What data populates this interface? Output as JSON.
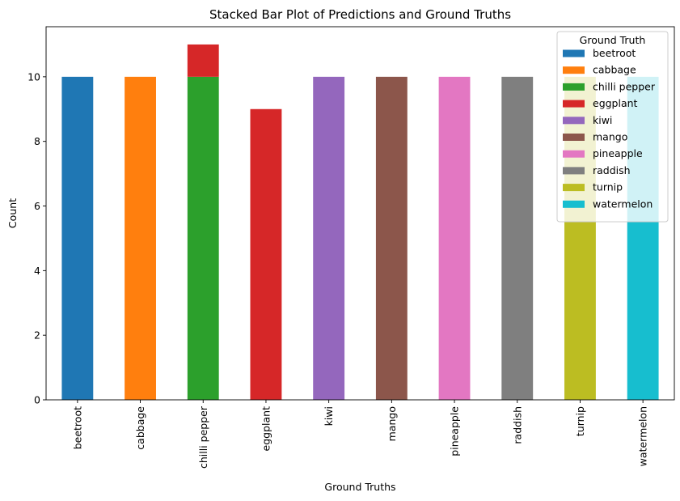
{
  "chart_data": {
    "type": "bar",
    "stacked": true,
    "title": "Stacked Bar Plot of Predictions and Ground Truths",
    "xlabel": "Ground Truths",
    "ylabel": "Count",
    "ylim": [
      0,
      11.55
    ],
    "yticks": [
      0,
      2,
      4,
      6,
      8,
      10
    ],
    "grid": false,
    "categories": [
      "beetroot",
      "cabbage",
      "chilli pepper",
      "eggplant",
      "kiwi",
      "mango",
      "pineapple",
      "raddish",
      "turnip",
      "watermelon"
    ],
    "legend": {
      "title": "Ground Truth",
      "placement": "top-right"
    },
    "series": [
      {
        "name": "beetroot",
        "color": "#1f77b4",
        "values": [
          10,
          0,
          0,
          0,
          0,
          0,
          0,
          0,
          0,
          0
        ]
      },
      {
        "name": "cabbage",
        "color": "#ff7f0e",
        "values": [
          0,
          10,
          0,
          0,
          0,
          0,
          0,
          0,
          0,
          0
        ]
      },
      {
        "name": "chilli pepper",
        "color": "#2ca02c",
        "values": [
          0,
          0,
          10,
          0,
          0,
          0,
          0,
          0,
          0,
          0
        ]
      },
      {
        "name": "eggplant",
        "color": "#d62728",
        "values": [
          0,
          0,
          1,
          9,
          0,
          0,
          0,
          0,
          0,
          0
        ]
      },
      {
        "name": "kiwi",
        "color": "#9467bd",
        "values": [
          0,
          0,
          0,
          0,
          10,
          0,
          0,
          0,
          0,
          0
        ]
      },
      {
        "name": "mango",
        "color": "#8c564b",
        "values": [
          0,
          0,
          0,
          0,
          0,
          10,
          0,
          0,
          0,
          0
        ]
      },
      {
        "name": "pineapple",
        "color": "#e377c2",
        "values": [
          0,
          0,
          0,
          0,
          0,
          0,
          10,
          0,
          0,
          0
        ]
      },
      {
        "name": "raddish",
        "color": "#7f7f7f",
        "values": [
          0,
          0,
          0,
          0,
          0,
          0,
          0,
          10,
          0,
          0
        ]
      },
      {
        "name": "turnip",
        "color": "#bcbd22",
        "values": [
          0,
          0,
          0,
          0,
          0,
          0,
          0,
          0,
          10,
          0
        ]
      },
      {
        "name": "watermelon",
        "color": "#17becf",
        "values": [
          0,
          0,
          0,
          0,
          0,
          0,
          0,
          0,
          0,
          10
        ]
      }
    ]
  }
}
